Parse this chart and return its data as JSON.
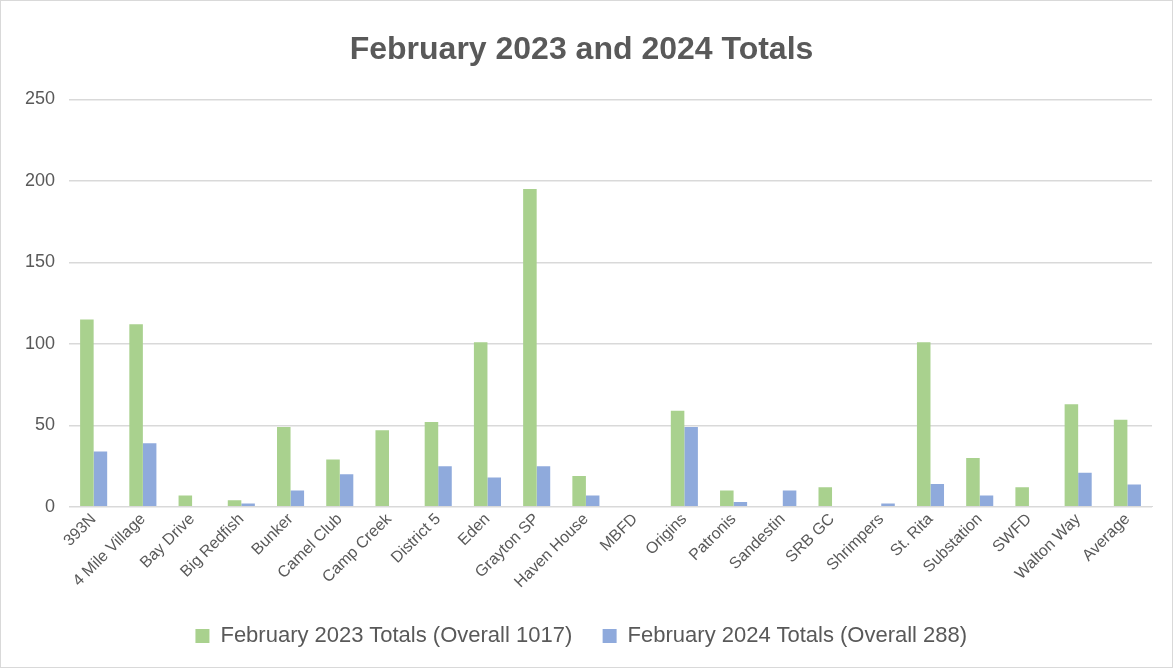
{
  "chart_data": {
    "type": "bar",
    "title": "February 2023 and 2024 Totals",
    "categories": [
      "393N",
      "4 Mile Village",
      "Bay Drive",
      "Big Redfish",
      "Bunker",
      "Camel Club",
      "Camp Creek",
      "District 5",
      "Eden",
      "Grayton SP",
      "Haven House",
      "MBFD",
      "Origins",
      "Patronis",
      "Sandestin",
      "SRB GC",
      "Shrimpers",
      "St. Rita",
      "Substation",
      "SWFD",
      "Walton Way",
      "Average"
    ],
    "series": [
      {
        "name": "February 2023 Totals (Overall 1017)",
        "color": "#a9d18e",
        "values": [
          115,
          112,
          7,
          4,
          49,
          29,
          47,
          52,
          101,
          195,
          19,
          0,
          59,
          10,
          0,
          12,
          0,
          101,
          30,
          12,
          63,
          53.5
        ]
      },
      {
        "name": "February 2024 Totals (Overall 288)",
        "color": "#8faadc",
        "values": [
          34,
          39,
          0,
          2,
          10,
          20,
          0,
          25,
          18,
          25,
          7,
          0,
          49,
          3,
          10,
          null,
          2,
          14,
          7,
          null,
          21,
          13.7
        ]
      }
    ],
    "ylim": [
      0,
      250
    ],
    "yticks": [
      0,
      50,
      100,
      150,
      200,
      250
    ],
    "grid": "y",
    "legend": "bottom"
  }
}
